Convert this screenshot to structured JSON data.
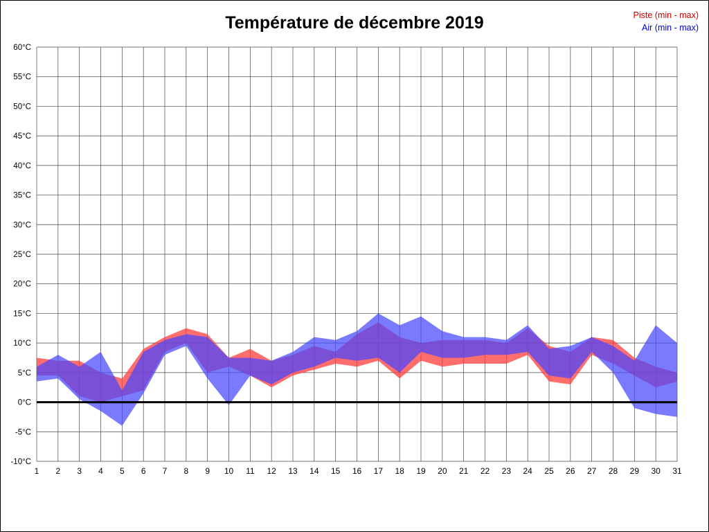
{
  "title": "Température de décembre 2019",
  "legend": {
    "piste": "Piste (min - max)",
    "air": "Air (min - max)",
    "piste_color": "#cc0000",
    "air_color": "#0000cc"
  },
  "chart_data": {
    "type": "area",
    "title": "Température de décembre 2019",
    "xlabel": "",
    "ylabel": "",
    "x": [
      1,
      2,
      3,
      4,
      5,
      6,
      7,
      8,
      9,
      10,
      11,
      12,
      13,
      14,
      15,
      16,
      17,
      18,
      19,
      20,
      21,
      22,
      23,
      24,
      25,
      26,
      27,
      28,
      29,
      30,
      31
    ],
    "xtick_labels": [
      "1",
      "2",
      "3",
      "4",
      "5",
      "6",
      "7",
      "8",
      "9",
      "10",
      "11",
      "12",
      "13",
      "14",
      "15",
      "16",
      "17",
      "18",
      "19",
      "20",
      "21",
      "22",
      "23",
      "24",
      "25",
      "26",
      "27",
      "28",
      "29",
      "30",
      "31"
    ],
    "ylim": [
      -10,
      60
    ],
    "ytick_step": 5,
    "ylabel_suffix": "°C",
    "grid": true,
    "grid_color": "#444444",
    "zero_line": true,
    "zero_line_color": "#000000",
    "legend_position": "top-right",
    "series": [
      {
        "name": "Piste (min - max)",
        "fill": "rgba(255,60,60,0.75)",
        "min": [
          4.5,
          4.5,
          1,
          0,
          1,
          2,
          8.5,
          10,
          5,
          6,
          4.5,
          2.5,
          4.5,
          5.5,
          6.5,
          6,
          7,
          4,
          7,
          6,
          6.5,
          6.5,
          6.5,
          8,
          3.5,
          3,
          8,
          6.5,
          4.5,
          2.5,
          3.5
        ],
        "max": [
          7.5,
          7,
          7,
          5,
          4,
          9,
          11,
          12.5,
          11.5,
          7.5,
          9,
          7,
          8,
          9.5,
          8.5,
          11.5,
          13.5,
          11,
          10,
          10.5,
          10.5,
          10.5,
          10,
          12.5,
          9.5,
          8.5,
          11,
          10.5,
          7.5,
          6,
          5
        ]
      },
      {
        "name": "Air (min - max)",
        "fill": "rgba(70,70,255,0.72)",
        "min": [
          3.5,
          4,
          0.5,
          -1.5,
          -4,
          1.5,
          8,
          9.5,
          4,
          -0.5,
          4.5,
          3,
          5,
          6,
          7.5,
          7,
          7.5,
          5,
          8.5,
          7.5,
          7.5,
          8,
          8,
          8.5,
          4.5,
          4,
          8.5,
          5,
          -1,
          -2,
          -2.5
        ],
        "max": [
          6,
          8,
          6,
          8.5,
          2,
          8.5,
          10.5,
          11.5,
          11,
          7.5,
          7.5,
          7,
          8.5,
          11,
          10.5,
          12,
          15,
          13,
          14.5,
          12,
          11,
          11,
          10.5,
          13,
          9,
          9.5,
          11,
          9.5,
          7,
          13,
          10
        ]
      }
    ]
  }
}
